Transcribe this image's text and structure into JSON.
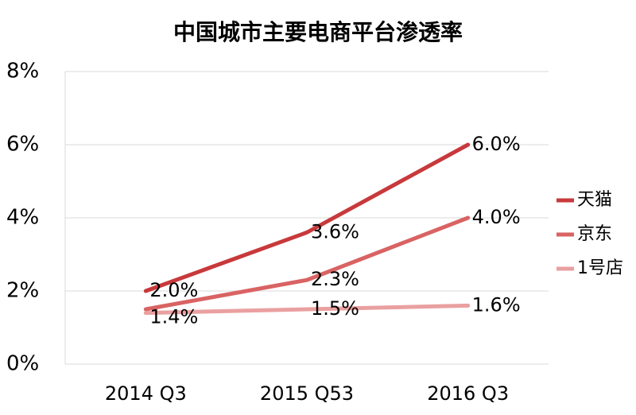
{
  "chart_data": {
    "type": "line",
    "title": "中国城市主要电商平台渗透率",
    "categories": [
      "2014 Q3",
      "2015 Q53",
      "2016 Q3"
    ],
    "series": [
      {
        "name": "天猫",
        "color": "#c8393b",
        "values": [
          2.0,
          3.6,
          6.0
        ],
        "value_labels": [
          "2.0%",
          "3.6%",
          "6.0%"
        ]
      },
      {
        "name": "京东",
        "color": "#d96363",
        "values": [
          1.5,
          2.3,
          4.0
        ],
        "value_labels": [
          null,
          "2.3%",
          "4.0%"
        ]
      },
      {
        "name": "1号店",
        "color": "#eaa0a0",
        "values": [
          1.4,
          1.5,
          1.6
        ],
        "value_labels": [
          "1.4%",
          "1.5%",
          "1.6%"
        ]
      }
    ],
    "ylim": [
      0,
      8
    ],
    "yticks": [
      {
        "value": 0,
        "label": "0%"
      },
      {
        "value": 2,
        "label": "2%"
      },
      {
        "value": 4,
        "label": "4%"
      },
      {
        "value": 6,
        "label": "6%"
      },
      {
        "value": 8,
        "label": "8%"
      }
    ],
    "grid": true,
    "legend": "right"
  }
}
